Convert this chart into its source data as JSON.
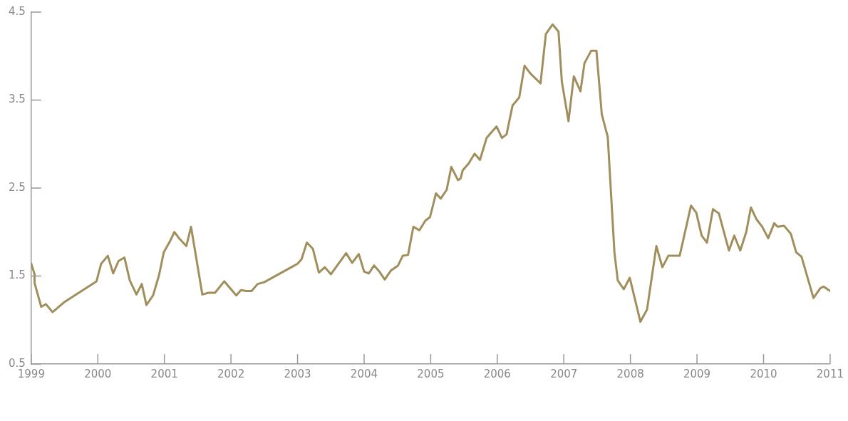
{
  "chart_data": {
    "type": "line",
    "x": [
      1999.0,
      1999.05,
      1999.05,
      1999.15,
      1999.22,
      1999.32,
      1999.49,
      1999.98,
      2000.05,
      2000.15,
      2000.23,
      2000.31,
      2000.4,
      2000.48,
      2000.58,
      2000.66,
      2000.73,
      2000.83,
      2000.92,
      2000.99,
      2001.08,
      2001.15,
      2001.22,
      2001.33,
      2001.4,
      2001.57,
      2001.66,
      2001.76,
      2001.9,
      2002.08,
      2002.15,
      2002.23,
      2002.31,
      2002.4,
      2002.5,
      2002.93,
      2003.0,
      2003.06,
      2003.14,
      2003.23,
      2003.32,
      2003.41,
      2003.5,
      2003.73,
      2003.82,
      2003.92,
      2004.0,
      2004.07,
      2004.15,
      2004.23,
      2004.31,
      2004.4,
      2004.51,
      2004.58,
      2004.66,
      2004.74,
      2004.83,
      2004.92,
      2004.99,
      2005.08,
      2005.15,
      2005.24,
      2005.31,
      2005.41,
      2005.45,
      2005.48,
      2005.57,
      2005.66,
      2005.74,
      2005.84,
      2005.99,
      2006.07,
      2006.14,
      2006.23,
      2006.33,
      2006.41,
      2006.5,
      2006.65,
      2006.73,
      2006.83,
      2006.92,
      2006.97,
      2007.07,
      2007.15,
      2007.25,
      2007.31,
      2007.41,
      2007.49,
      2007.57,
      2007.66,
      2007.76,
      2007.81,
      2007.9,
      2007.99,
      2008.15,
      2008.25,
      2008.39,
      2008.48,
      2008.57,
      2008.74,
      2008.91,
      2008.99,
      2009.07,
      2009.15,
      2009.24,
      2009.33,
      2009.48,
      2009.56,
      2009.65,
      2009.74,
      2009.81,
      2009.89,
      2009.98,
      2010.07,
      2010.16,
      2010.21,
      2010.31,
      2010.41,
      2010.49,
      2010.57,
      2010.75,
      2010.85,
      2010.9,
      2011.0
    ],
    "series": [
      {
        "color": "#a08f5c",
        "values": [
          1.64,
          1.52,
          1.42,
          1.15,
          1.18,
          1.09,
          1.2,
          1.44,
          1.64,
          1.73,
          1.53,
          1.67,
          1.71,
          1.45,
          1.29,
          1.41,
          1.17,
          1.28,
          1.51,
          1.77,
          1.89,
          2.0,
          1.93,
          1.84,
          2.06,
          1.29,
          1.31,
          1.31,
          1.44,
          1.28,
          1.34,
          1.33,
          1.33,
          1.41,
          1.43,
          1.61,
          1.64,
          1.69,
          1.88,
          1.81,
          1.54,
          1.6,
          1.52,
          1.76,
          1.65,
          1.75,
          1.55,
          1.53,
          1.62,
          1.55,
          1.46,
          1.56,
          1.62,
          1.73,
          1.74,
          2.06,
          2.02,
          2.13,
          2.17,
          2.44,
          2.38,
          2.48,
          2.74,
          2.59,
          2.61,
          2.7,
          2.78,
          2.89,
          2.82,
          3.07,
          3.2,
          3.07,
          3.11,
          3.44,
          3.53,
          3.89,
          3.8,
          3.69,
          4.25,
          4.36,
          4.28,
          3.71,
          3.26,
          3.77,
          3.6,
          3.92,
          4.06,
          4.06,
          3.34,
          3.08,
          1.77,
          1.45,
          1.35,
          1.48,
          0.98,
          1.12,
          1.84,
          1.6,
          1.73,
          1.73,
          2.3,
          2.22,
          1.96,
          1.88,
          2.26,
          2.21,
          1.79,
          1.96,
          1.79,
          2.0,
          2.28,
          2.15,
          2.06,
          1.93,
          2.1,
          2.06,
          2.07,
          1.98,
          1.77,
          1.72,
          1.25,
          1.36,
          1.38,
          1.33
        ]
      }
    ],
    "xlim": [
      1999,
      2011
    ],
    "xticks": [
      1999,
      2000,
      2001,
      2002,
      2003,
      2004,
      2005,
      2006,
      2007,
      2008,
      2009,
      2010,
      2011
    ],
    "ylim": [
      0.5,
      4.5
    ],
    "yticks": [
      0.5,
      1.5,
      2.5,
      3.5,
      4.5
    ],
    "grid": false,
    "legend": false,
    "marker": "none",
    "line_style": "solid"
  }
}
